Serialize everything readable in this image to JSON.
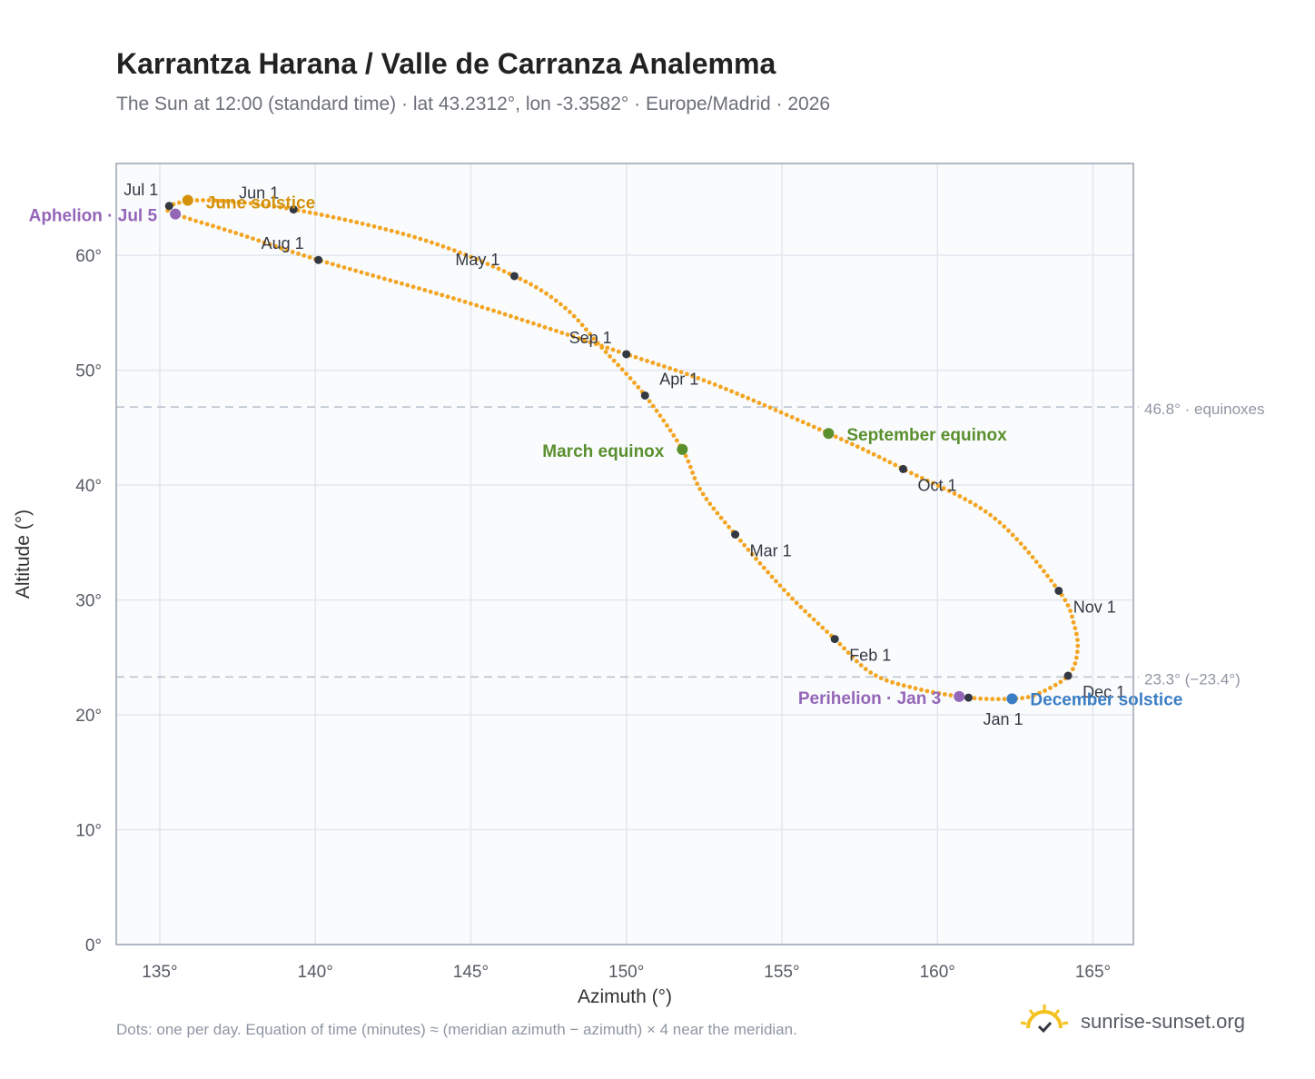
{
  "header": {
    "title": "Karrantza Harana / Valle de Carranza Analemma",
    "subtitle": "The Sun at 12:00 (standard time) · lat 43.2312°, lon -3.3582° · Europe/Madrid · 2026"
  },
  "footer": {
    "note": "Dots: one per day. Equation of time (minutes) ≈ (meridian azimuth − azimuth) × 4 near the meridian.",
    "brand": "sunrise-sunset.org"
  },
  "colors": {
    "curve": "#f3a521",
    "month_dot": "#333842",
    "solstice_june": "#d4920a",
    "solstice_december": "#3a7dc4",
    "equinox": "#5a8f2e",
    "apsis": "#9466b8",
    "reference_line": "#b8c0cc",
    "plot_bg": "#f9fbfd",
    "grid": "#e2e7ee",
    "frame": "#9aa4b2"
  },
  "chart_data": {
    "type": "scatter",
    "xlabel": "Azimuth (°)",
    "ylabel": "Altitude (°)",
    "xlim": [
      133.6,
      166.3
    ],
    "ylim": [
      0,
      68
    ],
    "xticks": [
      135,
      140,
      145,
      150,
      155,
      160,
      165
    ],
    "xtick_labels": [
      "135°",
      "140°",
      "145°",
      "150°",
      "155°",
      "160°",
      "165°"
    ],
    "yticks": [
      0,
      10,
      20,
      30,
      40,
      50,
      60
    ],
    "ytick_labels": [
      "0°",
      "10°",
      "20°",
      "30°",
      "40°",
      "50°",
      "60°"
    ],
    "grid": true,
    "series": [
      {
        "marker": "small dots, one per day",
        "points": [
          [
            161.0,
            21.5
          ],
          [
            159.3,
            22.3
          ],
          [
            157.9,
            23.6
          ],
          [
            156.7,
            26.6
          ],
          [
            155.2,
            30.5
          ],
          [
            153.5,
            35.7
          ],
          [
            152.4,
            39.5
          ],
          [
            151.8,
            43.1
          ],
          [
            150.6,
            47.8
          ],
          [
            149.2,
            52.0
          ],
          [
            148.0,
            55.5
          ],
          [
            146.4,
            58.2
          ],
          [
            143.3,
            61.5
          ],
          [
            139.3,
            64.0
          ],
          [
            136.5,
            64.8
          ],
          [
            135.3,
            64.3
          ],
          [
            135.5,
            63.6
          ],
          [
            137.5,
            61.9
          ],
          [
            140.1,
            59.6
          ],
          [
            145.0,
            55.8
          ],
          [
            150.0,
            51.4
          ],
          [
            152.8,
            48.8
          ],
          [
            156.5,
            44.5
          ],
          [
            158.9,
            41.4
          ],
          [
            161.8,
            37.2
          ],
          [
            163.9,
            30.8
          ],
          [
            164.4,
            27.8
          ],
          [
            164.5,
            25.5
          ],
          [
            164.2,
            23.4
          ],
          [
            163.2,
            21.8
          ],
          [
            162.4,
            21.4
          ],
          [
            161.0,
            21.5
          ]
        ]
      }
    ],
    "month_markers": [
      {
        "label": "Jan 1",
        "x": 161.0,
        "y": 21.5
      },
      {
        "label": "Feb 1",
        "x": 156.7,
        "y": 26.6
      },
      {
        "label": "Mar 1",
        "x": 153.5,
        "y": 35.7
      },
      {
        "label": "Apr 1",
        "x": 150.6,
        "y": 47.8
      },
      {
        "label": "May 1",
        "x": 146.4,
        "y": 58.2
      },
      {
        "label": "Jun 1",
        "x": 139.3,
        "y": 64.0
      },
      {
        "label": "Jul 1",
        "x": 135.3,
        "y": 64.3
      },
      {
        "label": "Aug 1",
        "x": 140.1,
        "y": 59.6
      },
      {
        "label": "Sep 1",
        "x": 150.0,
        "y": 51.4
      },
      {
        "label": "Oct 1",
        "x": 158.9,
        "y": 41.4
      },
      {
        "label": "Nov 1",
        "x": 163.9,
        "y": 30.8
      },
      {
        "label": "Dec 1",
        "x": 164.2,
        "y": 23.4
      }
    ],
    "events": [
      {
        "label": "June solstice",
        "x": 135.9,
        "y": 64.8,
        "kind": "solstice_june"
      },
      {
        "label": "December solstice",
        "x": 162.4,
        "y": 21.4,
        "kind": "solstice_december"
      },
      {
        "label": "March equinox",
        "x": 151.8,
        "y": 43.1,
        "kind": "equinox"
      },
      {
        "label": "September equinox",
        "x": 156.5,
        "y": 44.5,
        "kind": "equinox"
      },
      {
        "label": "Aphelion · Jul 5",
        "x": 135.5,
        "y": 63.6,
        "kind": "apsis"
      },
      {
        "label": "Perihelion · Jan 3",
        "x": 160.7,
        "y": 21.6,
        "kind": "apsis"
      }
    ],
    "reference_lines": [
      {
        "y": 46.8,
        "label": "46.8° · equinoxes"
      },
      {
        "y": 23.3,
        "label": "23.3° (−23.4°)"
      }
    ]
  }
}
